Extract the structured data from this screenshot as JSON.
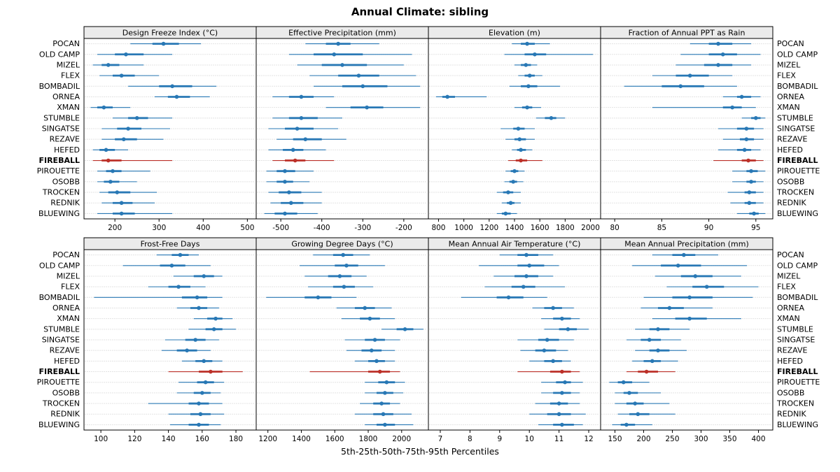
{
  "title": "Annual Climate: sibling",
  "caption": "5th-25th-50th-75th-95th Percentiles",
  "colors": {
    "normal": "#2878b5",
    "highlight": "#bc3028",
    "strip_bg": "#ebebeb",
    "grid": "#c6c6c6",
    "border": "#000000"
  },
  "chart_data": {
    "type": "dotplot-percentiles",
    "percentile_order": [
      "p5",
      "p25",
      "p50",
      "p75",
      "p95"
    ],
    "legend_note": "5th-25th-50th-75th-95th Percentiles",
    "highlight": "FIREBALL",
    "stations": [
      "POCAN",
      "OLD CAMP",
      "MIZEL",
      "FLEX",
      "BOMBADIL",
      "ORNEA",
      "XMAN",
      "STUMBLE",
      "SINGATSE",
      "REZAVE",
      "HEFED",
      "FIREBALL",
      "PIROUETTE",
      "OSOBB",
      "TROCKEN",
      "REDNIK",
      "BLUEWING"
    ],
    "panels": [
      {
        "title": "Design Freeze Index (°C)",
        "xlim": [
          130,
          520
        ],
        "ticks": [
          200,
          300,
          400,
          500
        ],
        "values": [
          [
            235,
            285,
            310,
            345,
            395
          ],
          [
            160,
            200,
            225,
            265,
            330
          ],
          [
            150,
            170,
            185,
            210,
            265
          ],
          [
            165,
            195,
            215,
            245,
            300
          ],
          [
            230,
            300,
            330,
            375,
            430
          ],
          [
            290,
            320,
            340,
            370,
            415
          ],
          [
            145,
            160,
            175,
            195,
            235
          ],
          [
            195,
            230,
            250,
            275,
            330
          ],
          [
            170,
            205,
            230,
            260,
            325
          ],
          [
            170,
            200,
            220,
            250,
            310
          ],
          [
            150,
            165,
            180,
            200,
            230
          ],
          [
            150,
            170,
            185,
            215,
            330
          ],
          [
            160,
            180,
            195,
            215,
            280
          ],
          [
            160,
            175,
            190,
            210,
            250
          ],
          [
            165,
            185,
            205,
            235,
            295
          ],
          [
            170,
            195,
            215,
            240,
            290
          ],
          [
            160,
            195,
            215,
            245,
            330
          ]
        ]
      },
      {
        "title": "Effective Precipitation (mm)",
        "xlim": [
          -560,
          -140
        ],
        "ticks": [
          -500,
          -400,
          -300,
          -200
        ],
        "values": [
          [
            -440,
            -390,
            -360,
            -330,
            -260
          ],
          [
            -480,
            -420,
            -370,
            -300,
            -180
          ],
          [
            -460,
            -400,
            -350,
            -290,
            -200
          ],
          [
            -430,
            -360,
            -310,
            -260,
            -170
          ],
          [
            -420,
            -350,
            -300,
            -240,
            -160
          ],
          [
            -520,
            -480,
            -450,
            -420,
            -370
          ],
          [
            -390,
            -330,
            -290,
            -250,
            -160
          ],
          [
            -520,
            -480,
            -450,
            -410,
            -350
          ],
          [
            -530,
            -490,
            -460,
            -420,
            -360
          ],
          [
            -510,
            -470,
            -440,
            -400,
            -340
          ],
          [
            -530,
            -495,
            -470,
            -445,
            -390
          ],
          [
            -520,
            -490,
            -465,
            -440,
            -370
          ],
          [
            -535,
            -510,
            -490,
            -465,
            -420
          ],
          [
            -535,
            -510,
            -490,
            -470,
            -430
          ],
          [
            -530,
            -505,
            -480,
            -450,
            -400
          ],
          [
            -525,
            -500,
            -475,
            -445,
            -400
          ],
          [
            -540,
            -515,
            -490,
            -460,
            -410
          ]
        ]
      },
      {
        "title": "Elevation (m)",
        "xlim": [
          720,
          2080
        ],
        "ticks": [
          800,
          1000,
          1200,
          1400,
          1600,
          1800,
          2000
        ],
        "values": [
          [
            1380,
            1450,
            1500,
            1560,
            1680
          ],
          [
            1320,
            1480,
            1560,
            1650,
            2020
          ],
          [
            1400,
            1450,
            1490,
            1530,
            1580
          ],
          [
            1430,
            1480,
            1520,
            1560,
            1620
          ],
          [
            1360,
            1450,
            1510,
            1580,
            1760
          ],
          [
            780,
            830,
            870,
            930,
            1180
          ],
          [
            1400,
            1460,
            1500,
            1540,
            1610
          ],
          [
            1570,
            1640,
            1690,
            1730,
            1800
          ],
          [
            1290,
            1390,
            1430,
            1480,
            1560
          ],
          [
            1330,
            1400,
            1440,
            1490,
            1560
          ],
          [
            1380,
            1420,
            1450,
            1490,
            1540
          ],
          [
            1350,
            1410,
            1450,
            1500,
            1620
          ],
          [
            1330,
            1370,
            1400,
            1430,
            1480
          ],
          [
            1320,
            1360,
            1390,
            1420,
            1470
          ],
          [
            1260,
            1310,
            1350,
            1390,
            1450
          ],
          [
            1300,
            1340,
            1370,
            1400,
            1450
          ],
          [
            1260,
            1300,
            1330,
            1370,
            1420
          ]
        ]
      },
      {
        "title": "Fraction of Annual PPT as Rain",
        "xlim": [
          78.5,
          96.8
        ],
        "ticks": [
          80,
          85,
          90,
          95
        ],
        "values": [
          [
            88,
            90,
            91,
            92.5,
            94.5
          ],
          [
            87,
            90,
            91.5,
            93,
            95.5
          ],
          [
            86.5,
            89.5,
            91,
            92.5,
            94.5
          ],
          [
            84,
            86.5,
            88,
            90,
            92.5
          ],
          [
            81,
            85,
            87,
            89.5,
            93
          ],
          [
            91.5,
            93,
            93.5,
            94.5,
            95.5
          ],
          [
            84,
            91.5,
            92.5,
            93.5,
            95
          ],
          [
            93.5,
            94.5,
            95,
            95.5,
            96
          ],
          [
            91,
            93,
            94,
            94.8,
            95.8
          ],
          [
            91.5,
            93.3,
            94,
            94.8,
            95.8
          ],
          [
            91,
            93,
            93.8,
            94.5,
            95.5
          ],
          [
            90.5,
            93.5,
            94.2,
            95,
            95.8
          ],
          [
            92.5,
            94,
            94.5,
            95.2,
            96
          ],
          [
            92.5,
            94,
            94.5,
            95,
            95.8
          ],
          [
            92,
            93.8,
            94.3,
            95,
            95.8
          ],
          [
            92.3,
            93.8,
            94.3,
            95,
            95.8
          ],
          [
            93,
            94.3,
            94.8,
            95.3,
            96
          ]
        ]
      },
      {
        "title": "Frost-Free Days",
        "xlim": [
          90,
          192
        ],
        "ticks": [
          100,
          120,
          140,
          160,
          180
        ],
        "values": [
          [
            133,
            142,
            147,
            152,
            158
          ],
          [
            113,
            135,
            142,
            150,
            165
          ],
          [
            143,
            155,
            161,
            167,
            172
          ],
          [
            128,
            140,
            146,
            153,
            162
          ],
          [
            96,
            148,
            157,
            163,
            172
          ],
          [
            145,
            153,
            158,
            163,
            170
          ],
          [
            155,
            163,
            168,
            172,
            178
          ],
          [
            152,
            162,
            167,
            172,
            180
          ],
          [
            138,
            150,
            156,
            162,
            170
          ],
          [
            136,
            145,
            151,
            157,
            165
          ],
          [
            148,
            156,
            161,
            166,
            172
          ],
          [
            140,
            158,
            165,
            172,
            184
          ],
          [
            146,
            157,
            162,
            167,
            173
          ],
          [
            145,
            155,
            160,
            165,
            171
          ],
          [
            128,
            152,
            158,
            164,
            172
          ],
          [
            140,
            153,
            159,
            165,
            173
          ],
          [
            141,
            152,
            158,
            164,
            171
          ]
        ]
      },
      {
        "title": "Growing Degree Days (°C)",
        "xlim": [
          1130,
          2160
        ],
        "ticks": [
          1200,
          1400,
          1600,
          1800,
          2000
        ],
        "values": [
          [
            1470,
            1590,
            1650,
            1710,
            1810
          ],
          [
            1390,
            1600,
            1670,
            1740,
            1900
          ],
          [
            1420,
            1560,
            1630,
            1700,
            1790
          ],
          [
            1440,
            1590,
            1655,
            1720,
            1830
          ],
          [
            1190,
            1420,
            1500,
            1580,
            1730
          ],
          [
            1610,
            1720,
            1780,
            1840,
            1940
          ],
          [
            1640,
            1750,
            1810,
            1870,
            1960
          ],
          [
            1880,
            1970,
            2020,
            2070,
            2130
          ],
          [
            1660,
            1780,
            1840,
            1900,
            1990
          ],
          [
            1670,
            1760,
            1820,
            1880,
            1960
          ],
          [
            1720,
            1800,
            1850,
            1900,
            1960
          ],
          [
            1450,
            1800,
            1870,
            1930,
            1990
          ],
          [
            1780,
            1860,
            1910,
            1960,
            2020
          ],
          [
            1780,
            1850,
            1900,
            1950,
            2010
          ],
          [
            1750,
            1830,
            1880,
            1930,
            1990
          ],
          [
            1720,
            1830,
            1890,
            1950,
            2060
          ],
          [
            1780,
            1850,
            1900,
            1960,
            2070
          ]
        ]
      },
      {
        "title": "Mean Annual Air Temperature (°C)",
        "xlim": [
          6.6,
          12.4
        ],
        "ticks": [
          7,
          8,
          9,
          10,
          11,
          12
        ],
        "values": [
          [
            9.0,
            9.6,
            9.9,
            10.3,
            10.8
          ],
          [
            8.3,
            9.6,
            10.0,
            10.5,
            11.0
          ],
          [
            8.8,
            9.5,
            9.9,
            10.3,
            10.8
          ],
          [
            8.5,
            9.4,
            9.8,
            10.2,
            11.2
          ],
          [
            7.7,
            8.9,
            9.3,
            9.8,
            10.6
          ],
          [
            10.1,
            10.5,
            10.8,
            11.1,
            11.5
          ],
          [
            10.4,
            10.8,
            11.1,
            11.4,
            11.7
          ],
          [
            10.5,
            11.0,
            11.3,
            11.6,
            12.0
          ],
          [
            9.6,
            10.3,
            10.6,
            11.0,
            11.5
          ],
          [
            9.7,
            10.2,
            10.5,
            10.9,
            11.3
          ],
          [
            10.0,
            10.5,
            10.8,
            11.1,
            11.4
          ],
          [
            9.6,
            10.7,
            11.1,
            11.4,
            11.7
          ],
          [
            10.4,
            10.9,
            11.2,
            11.4,
            11.8
          ],
          [
            10.4,
            10.8,
            11.1,
            11.4,
            11.7
          ],
          [
            10.2,
            10.7,
            11.0,
            11.3,
            11.7
          ],
          [
            10.0,
            10.6,
            11.0,
            11.4,
            11.9
          ],
          [
            10.3,
            10.8,
            11.1,
            11.5,
            11.8
          ]
        ]
      },
      {
        "title": "Mean Annual Precipitation (mm)",
        "xlim": [
          125,
          425
        ],
        "ticks": [
          150,
          200,
          250,
          300,
          350,
          400
        ],
        "values": [
          [
            215,
            250,
            270,
            290,
            330
          ],
          [
            180,
            230,
            260,
            300,
            380
          ],
          [
            220,
            265,
            290,
            320,
            370
          ],
          [
            240,
            285,
            310,
            340,
            400
          ],
          [
            200,
            250,
            280,
            320,
            390
          ],
          [
            195,
            225,
            245,
            270,
            320
          ],
          [
            215,
            255,
            280,
            310,
            370
          ],
          [
            185,
            210,
            225,
            245,
            280
          ],
          [
            170,
            195,
            210,
            230,
            265
          ],
          [
            185,
            210,
            225,
            245,
            275
          ],
          [
            180,
            200,
            215,
            230,
            260
          ],
          [
            170,
            190,
            205,
            225,
            255
          ],
          [
            140,
            155,
            165,
            180,
            210
          ],
          [
            150,
            165,
            175,
            190,
            230
          ],
          [
            150,
            170,
            185,
            200,
            245
          ],
          [
            155,
            175,
            190,
            210,
            255
          ],
          [
            145,
            160,
            170,
            185,
            215
          ]
        ]
      }
    ]
  }
}
